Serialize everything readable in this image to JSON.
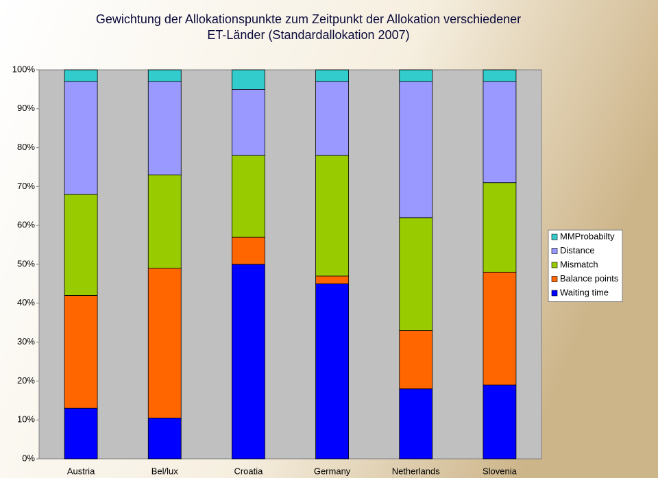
{
  "chart_data": {
    "type": "stacked_bar",
    "title": [
      "Gewichtung der Allokationspunkte zum Zeitpunkt der Allokation verschiedener",
      "ET-Länder  (Standardallokation 2007)"
    ],
    "categories": [
      "Austria",
      "Bel/lux",
      "Croatia",
      "Germany",
      "Netherlands",
      "Slovenia"
    ],
    "series": [
      {
        "name": "Waiting time",
        "color": "#0000ff",
        "values": [
          13,
          10.5,
          50,
          45,
          18,
          19
        ]
      },
      {
        "name": "Balance points",
        "color": "#ff6600",
        "values": [
          29,
          38.5,
          7,
          2,
          15,
          29
        ]
      },
      {
        "name": "Mismatch",
        "color": "#99cc00",
        "values": [
          26,
          24,
          21,
          31,
          29,
          23
        ]
      },
      {
        "name": "Distance",
        "color": "#9999ff",
        "values": [
          29,
          24,
          17,
          19,
          35,
          26
        ]
      },
      {
        "name": "MMProbabilty",
        "color": "#33cccc",
        "values": [
          3,
          3,
          5,
          3,
          3,
          3
        ]
      }
    ],
    "ylim": [
      0,
      100
    ],
    "yticks": [
      {
        "value": 0,
        "label": "0%"
      },
      {
        "value": 10,
        "label": "10%"
      },
      {
        "value": 20,
        "label": "20%"
      },
      {
        "value": 30,
        "label": "30%"
      },
      {
        "value": 40,
        "label": "40%"
      },
      {
        "value": 50,
        "label": "50%"
      },
      {
        "value": 60,
        "label": "60%"
      },
      {
        "value": 70,
        "label": "70%"
      },
      {
        "value": 80,
        "label": "80%"
      },
      {
        "value": 90,
        "label": "90%"
      },
      {
        "value": 100,
        "label": "100%"
      }
    ],
    "legend": "right"
  }
}
